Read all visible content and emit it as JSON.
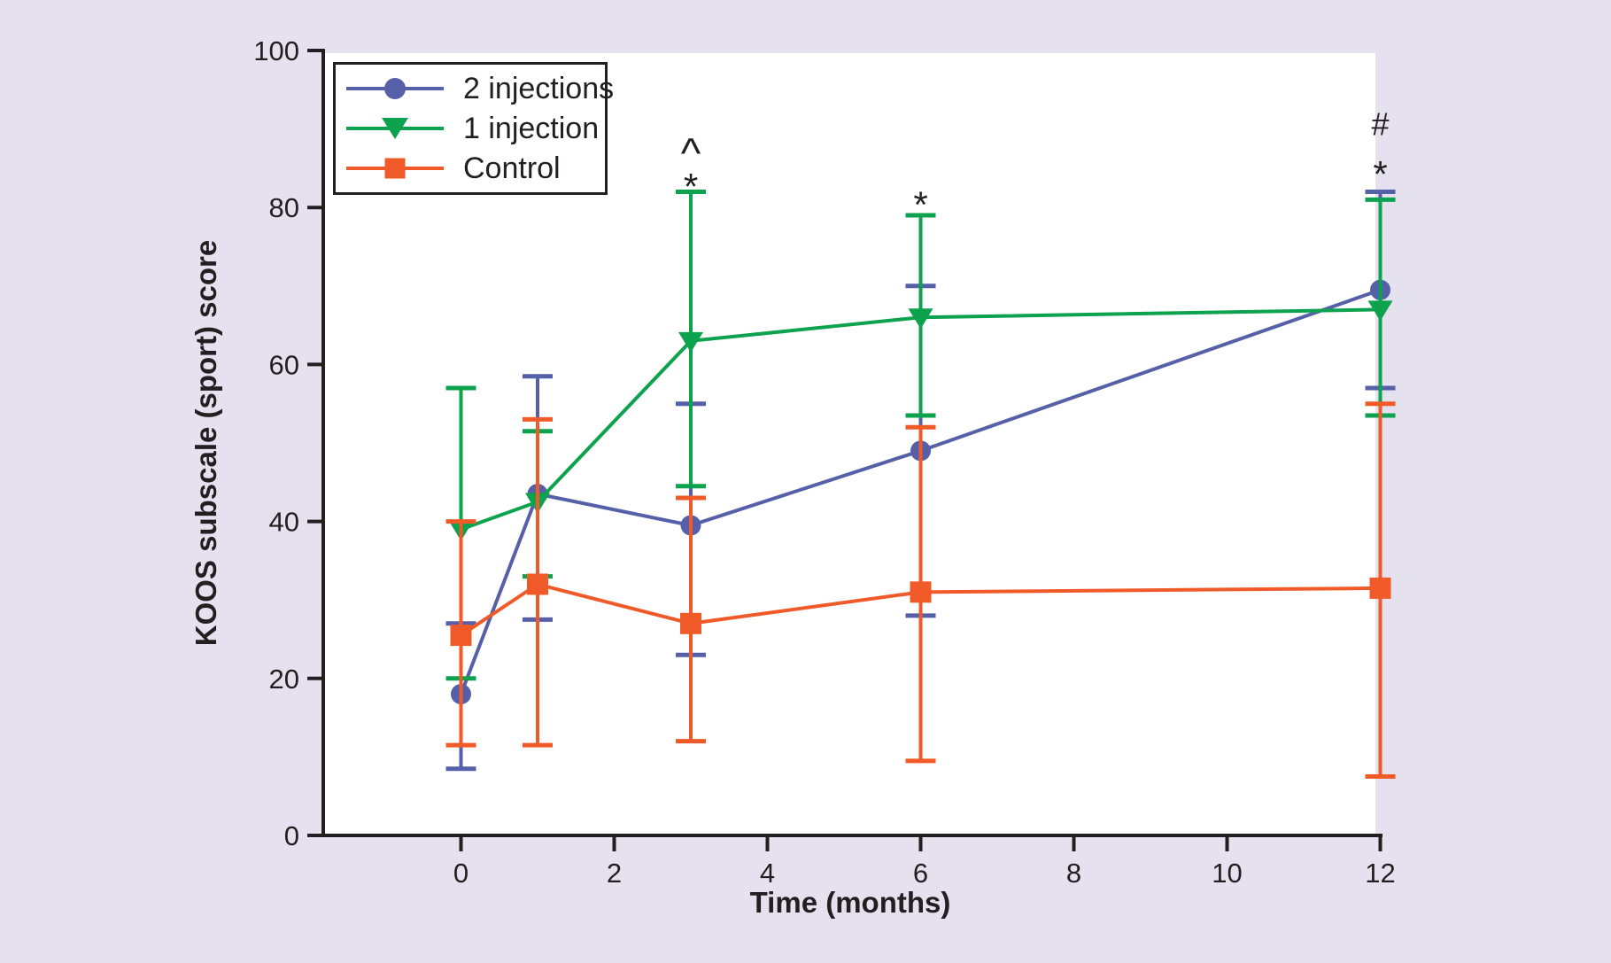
{
  "figure": {
    "background_color": "#e5e1ef",
    "plot_background_color": "#ffffff",
    "axis_color": "#231f20"
  },
  "chart_data": {
    "type": "line",
    "title": "",
    "xlabel": "Time (months)",
    "ylabel": "KOOS subscale (sport) score",
    "xlim": [
      -1.8,
      12
    ],
    "ylim": [
      0,
      100
    ],
    "x_ticks": [
      0,
      2,
      4,
      6,
      8,
      10,
      12
    ],
    "y_ticks": [
      0,
      20,
      40,
      60,
      80,
      100
    ],
    "grid": "off",
    "legend_position": "top-left",
    "x": [
      0,
      1,
      3,
      6,
      12
    ],
    "series": [
      {
        "name": "2 injections",
        "color": "#5560a9",
        "marker": "circle",
        "values": [
          18,
          43.5,
          39.5,
          49,
          69.5
        ],
        "err_low": [
          8.5,
          27.5,
          23,
          28,
          57
        ],
        "err_high": [
          27,
          58.5,
          55,
          70,
          82
        ]
      },
      {
        "name": "1 injection",
        "color": "#0da24d",
        "marker": "triangle-down",
        "values": [
          39,
          42.5,
          63,
          66,
          67
        ],
        "err_low": [
          20,
          33,
          44.5,
          53.5,
          53.5
        ],
        "err_high": [
          57,
          51.5,
          82,
          79,
          81
        ]
      },
      {
        "name": "Control",
        "color": "#f05a28",
        "marker": "square",
        "values": [
          25.5,
          32,
          27,
          31,
          31.5
        ],
        "err_low": [
          11.5,
          11.5,
          12,
          9.5,
          7.5
        ],
        "err_high": [
          40,
          53,
          43,
          52,
          55
        ]
      }
    ],
    "annotations": [
      {
        "text": "^",
        "month": 3,
        "score": 88
      },
      {
        "text": "*",
        "month": 3,
        "score": 83.3
      },
      {
        "text": "*",
        "month": 6,
        "score": 81
      },
      {
        "text": "#",
        "month": 12,
        "score": 90.8
      },
      {
        "text": "*",
        "month": 12,
        "score": 84.9
      }
    ]
  }
}
